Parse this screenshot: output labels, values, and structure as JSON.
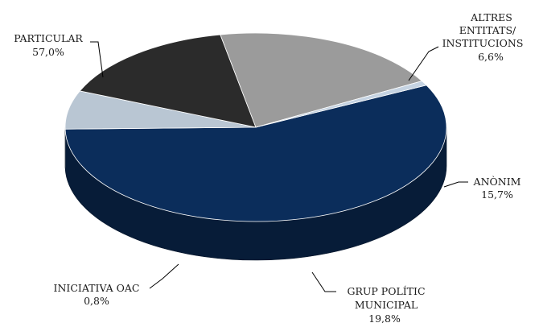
{
  "chart_data": {
    "type": "pie",
    "title": "",
    "three_d": true,
    "legend": "none",
    "slices": [
      {
        "label": "PARTICULAR",
        "value": 57.0,
        "value_text": "57,0%",
        "color": "#0b2d5b"
      },
      {
        "label": "ALTRES ENTITATS/ INSTITUCIONS",
        "value": 6.6,
        "value_text": "6,6%",
        "color": "#b9c6d3"
      },
      {
        "label": "ANÒNIM",
        "value": 15.7,
        "value_text": "15,7%",
        "color": "#2b2b2b"
      },
      {
        "label": "GRUP POLÍTIC MUNICIPAL",
        "value": 19.8,
        "value_text": "19,8%",
        "color": "#9b9b9b"
      },
      {
        "label": "INICIATIVA OAC",
        "value": 0.8,
        "value_text": "0,8%",
        "color": "#c5d3e2"
      }
    ]
  },
  "labels": {
    "particular": {
      "line1": "PARTICULAR",
      "value": "57,0%"
    },
    "altres": {
      "line1": "ALTRES",
      "line2": "ENTITATS/",
      "line3": "INSTITUCIONS",
      "value": "6,6%"
    },
    "anonim": {
      "line1": "ANÒNIM",
      "value": "15,7%"
    },
    "grup": {
      "line1": "GRUP POLÍTIC",
      "line2": "MUNICIPAL",
      "value": "19,8%"
    },
    "iniciativa": {
      "line1": "INICIATIVA OAC",
      "value": "0,8%"
    }
  }
}
